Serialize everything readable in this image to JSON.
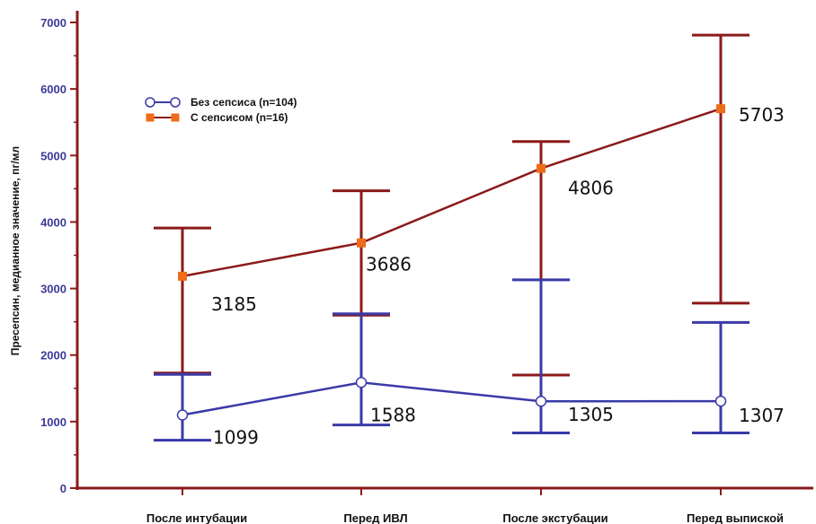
{
  "chart_data": {
    "type": "line",
    "ylabel": "Пресепсин, медианное значение, пг/мл",
    "ylim": [
      0,
      7000
    ],
    "yticks": [
      0,
      1000,
      2000,
      3000,
      4000,
      5000,
      6000,
      7000
    ],
    "tick_labels": [
      "0",
      "1000",
      "2000",
      "3000",
      "4000",
      "5000",
      "6000",
      "7000"
    ],
    "categories": [
      "После интубации",
      "Перед ИВЛ",
      "После экстубации",
      "Перед выпиской"
    ],
    "legend_position": "top-left",
    "grid": false,
    "series": [
      {
        "name": "Без сепсиса (n=104)",
        "color": "#3a3aa8",
        "marker": "circle",
        "values": [
          1099,
          1588,
          1305,
          1307
        ],
        "labels": [
          "1099",
          "1588",
          "1305",
          "1307"
        ],
        "lower": [
          720,
          950,
          830,
          830
        ],
        "upper": [
          1710,
          2620,
          3130,
          2490
        ]
      },
      {
        "name": "С сепсисом (n=16)",
        "color": "#8b1a1a",
        "marker_color": "#ef6c1a",
        "marker": "square",
        "values": [
          3185,
          3686,
          4806,
          5703
        ],
        "labels": [
          "3185",
          "3686",
          "4806",
          "5703"
        ],
        "lower": [
          1730,
          2600,
          1700,
          2780
        ],
        "upper": [
          3910,
          4470,
          5210,
          6810
        ]
      }
    ]
  }
}
